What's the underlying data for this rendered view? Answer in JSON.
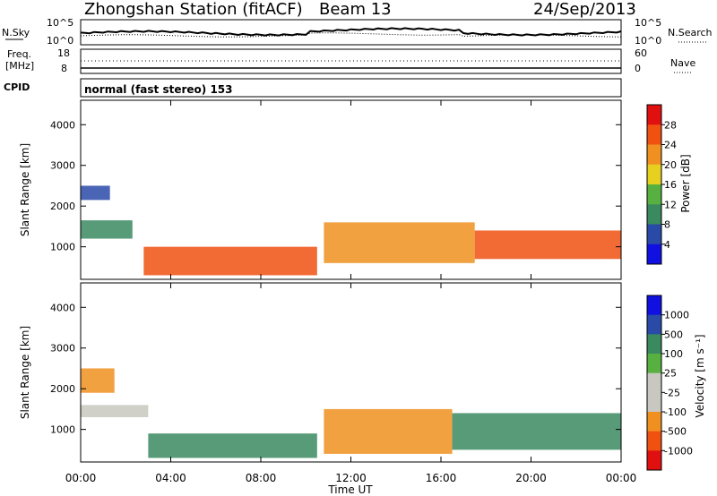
{
  "header": {
    "station": "Zhongshan Station (fitACF)",
    "beam": "Beam 13",
    "date": "24/Sep/2013"
  },
  "noise_panel": {
    "left_label": "N.Sky",
    "left_ticks": [
      "10^5",
      "10^0"
    ],
    "right_label": "N.Search",
    "right_ticks": [
      "10^5",
      "10^0"
    ]
  },
  "freq_panel": {
    "left_label_line1": "Freq.",
    "left_label_line2": "[MHz]",
    "left_ticks": [
      "18",
      "8"
    ],
    "right_label": "Nave",
    "right_ticks": [
      "60",
      "0"
    ]
  },
  "cpid": {
    "label": "CPID",
    "text": "normal (fast stereo) 153"
  },
  "colors": {
    "power_scale": [
      "#1010e0",
      "#2a4aa8",
      "#3a8a60",
      "#58b040",
      "#e8d020",
      "#f09020",
      "#f05010",
      "#e01010"
    ],
    "velocity_scale": [
      "#e01010",
      "#f05010",
      "#f09020",
      "#c8c8c0",
      "#c8c8c0",
      "#58b040",
      "#3a8a60",
      "#2a4aa8",
      "#1010e0"
    ]
  },
  "chart_data": [
    {
      "type": "heatmap",
      "title": "Power",
      "ylabel": "Slant Range [km]",
      "xlabel": "",
      "ylim": [
        200,
        4600
      ],
      "yticks": [
        "1000",
        "2000",
        "3000",
        "4000"
      ],
      "xticks": [
        "00:00",
        "04:00",
        "08:00",
        "12:00",
        "16:00",
        "20:00",
        "00:00"
      ],
      "colorbar": {
        "label": "Power [dB]",
        "ticks": [
          "4",
          "8",
          "12",
          "16",
          "20",
          "24",
          "28"
        ]
      },
      "bands": [
        {
          "t": [
            0.0,
            1.3
          ],
          "r": [
            2150,
            2500
          ],
          "level": 1
        },
        {
          "t": [
            0.0,
            2.3
          ],
          "r": [
            1200,
            1650
          ],
          "level": 2
        },
        {
          "t": [
            2.8,
            10.5
          ],
          "r": [
            300,
            1000
          ],
          "level": 6
        },
        {
          "t": [
            10.8,
            17.5
          ],
          "r": [
            600,
            1600
          ],
          "level": 5
        },
        {
          "t": [
            17.5,
            24.0
          ],
          "r": [
            700,
            1400
          ],
          "level": 6
        }
      ]
    },
    {
      "type": "heatmap",
      "title": "Velocity",
      "ylabel": "Slant Range [km]",
      "xlabel": "Time UT",
      "ylim": [
        200,
        4600
      ],
      "yticks": [
        "1000",
        "2000",
        "3000",
        "4000"
      ],
      "xticks": [
        "00:00",
        "04:00",
        "08:00",
        "12:00",
        "16:00",
        "20:00",
        "00:00"
      ],
      "colorbar": {
        "label": "Velocity [m s⁻¹]",
        "ticks": [
          "1000",
          "500",
          "100",
          "25",
          "-25",
          "-100",
          "-500",
          "-1000"
        ]
      },
      "bands": [
        {
          "t": [
            0.0,
            1.5
          ],
          "r": [
            1900,
            2500
          ],
          "level": 2
        },
        {
          "t": [
            0.0,
            3.0
          ],
          "r": [
            1300,
            1600
          ],
          "level": 3
        },
        {
          "t": [
            3.0,
            10.5
          ],
          "r": [
            300,
            900
          ],
          "level": 6
        },
        {
          "t": [
            10.8,
            16.5
          ],
          "r": [
            400,
            1500
          ],
          "level": 2
        },
        {
          "t": [
            16.5,
            24.0
          ],
          "r": [
            500,
            1400
          ],
          "level": 6
        }
      ]
    }
  ]
}
